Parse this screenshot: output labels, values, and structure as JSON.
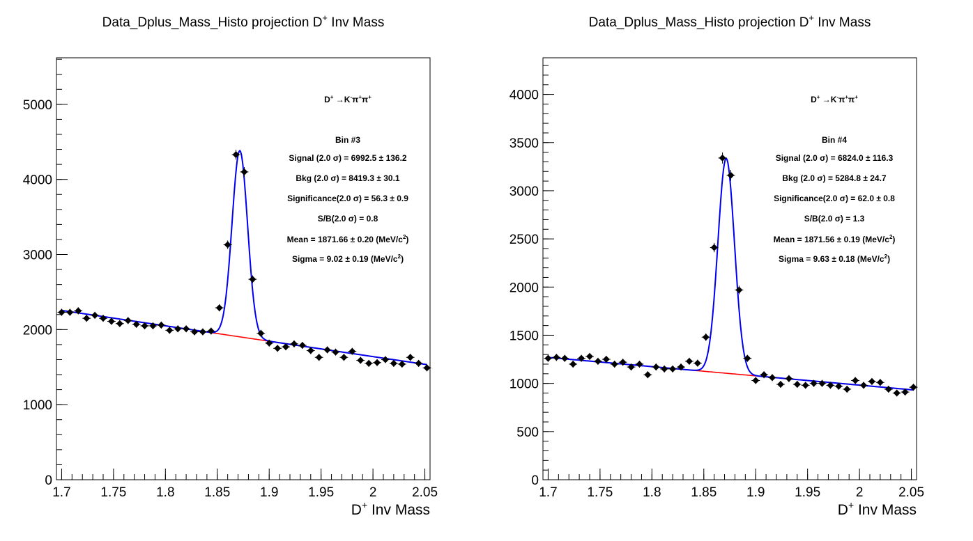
{
  "chart_data": [
    {
      "type": "scatter",
      "title_main": "Data_Dplus_Mass_Histo projection  D",
      "title_sup": "+",
      "title_end": " Inv Mass",
      "xlabel_main": "D",
      "xlabel_sup": "+",
      "xlabel_end": " Inv Mass",
      "xlim": [
        1.695,
        2.055
      ],
      "ylim": [
        0,
        5620
      ],
      "x_ticks": [
        1.7,
        1.75,
        1.8,
        1.85,
        1.9,
        1.95,
        2.0,
        2.05
      ],
      "x_tick_labels": [
        "1.7",
        "1.75",
        "1.8",
        "1.85",
        "1.9",
        "1.95",
        "2",
        "2.05"
      ],
      "y_ticks": [
        0,
        1000,
        2000,
        3000,
        4000,
        5000
      ],
      "y_tick_labels": [
        "0",
        "1000",
        "2000",
        "3000",
        "4000",
        "5000"
      ],
      "y_minor_step": 200,
      "x_minor_step": 0.01,
      "x": [
        1.7,
        1.708,
        1.716,
        1.724,
        1.732,
        1.74,
        1.748,
        1.756,
        1.764,
        1.772,
        1.78,
        1.788,
        1.796,
        1.804,
        1.812,
        1.82,
        1.828,
        1.836,
        1.844,
        1.852,
        1.86,
        1.868,
        1.876,
        1.884,
        1.892,
        1.9,
        1.908,
        1.916,
        1.924,
        1.932,
        1.94,
        1.948,
        1.956,
        1.964,
        1.972,
        1.98,
        1.988,
        1.996,
        2.004,
        2.012,
        2.02,
        2.028,
        2.036,
        2.044,
        2.052
      ],
      "y": [
        2230,
        2230,
        2250,
        2150,
        2190,
        2150,
        2110,
        2080,
        2120,
        2070,
        2050,
        2050,
        2060,
        1990,
        2010,
        2010,
        1970,
        1970,
        1980,
        2290,
        3130,
        4330,
        4100,
        2670,
        1950,
        1820,
        1750,
        1770,
        1810,
        1790,
        1720,
        1630,
        1730,
        1700,
        1630,
        1710,
        1590,
        1550,
        1560,
        1600,
        1550,
        1540,
        1630,
        1550,
        1490
      ],
      "fit": {
        "bkg_a": 2255,
        "bkg_b": -2050,
        "x0": 1.7,
        "amp": 2480,
        "mean": 1.8717,
        "sigma": 0.0075
      },
      "bkg_color": "#ff0000",
      "fit_color": "#0000ee",
      "marker_color": "#000000",
      "annotations": {
        "decay_main": "D",
        "decay_sup1": "+",
        "decay_mid": " →K",
        "decay_sup2": "-",
        "decay_pi1": "π",
        "decay_sup3": "+",
        "decay_pi2": "π",
        "decay_sup4": "+",
        "bin": "Bin #3",
        "signal": "Signal (2.0  σ) =  6992.5  ± 136.2",
        "bkg": "Bkg (2.0  σ) =  8419.3  ± 30.1",
        "significance": "Significance(2.0  σ) =  56.3  ± 0.9",
        "sb": "S/B(2.0  σ) =  0.8",
        "mean": "Mean = 1871.66  ± 0.20 (MeV/c",
        "mean_sup": "2",
        "mean_end": ")",
        "sigma": "Sigma = 9.02  ± 0.19 (MeV/c",
        "sigma_sup": "2",
        "sigma_end": ")"
      }
    },
    {
      "type": "scatter",
      "title_main": "Data_Dplus_Mass_Histo projection  D",
      "title_sup": "+",
      "title_end": " Inv Mass",
      "xlabel_main": "D",
      "xlabel_sup": "+",
      "xlabel_end": " Inv Mass",
      "xlim": [
        1.695,
        2.055
      ],
      "ylim": [
        0,
        4380
      ],
      "x_ticks": [
        1.7,
        1.75,
        1.8,
        1.85,
        1.9,
        1.95,
        2.0,
        2.05
      ],
      "x_tick_labels": [
        "1.7",
        "1.75",
        "1.8",
        "1.85",
        "1.9",
        "1.95",
        "2",
        "2.05"
      ],
      "y_ticks": [
        0,
        500,
        1000,
        1500,
        2000,
        2500,
        3000,
        3500,
        4000
      ],
      "y_tick_labels": [
        "0",
        "500",
        "1000",
        "1500",
        "2000",
        "2500",
        "3000",
        "3500",
        "4000"
      ],
      "y_minor_step": 100,
      "x_minor_step": 0.01,
      "x": [
        1.7,
        1.708,
        1.716,
        1.724,
        1.732,
        1.74,
        1.748,
        1.756,
        1.764,
        1.772,
        1.78,
        1.788,
        1.796,
        1.804,
        1.812,
        1.82,
        1.828,
        1.836,
        1.844,
        1.852,
        1.86,
        1.868,
        1.876,
        1.884,
        1.892,
        1.9,
        1.908,
        1.916,
        1.924,
        1.932,
        1.94,
        1.948,
        1.956,
        1.964,
        1.972,
        1.98,
        1.988,
        1.996,
        2.004,
        2.012,
        2.02,
        2.028,
        2.036,
        2.044,
        2.052
      ],
      "y": [
        1260,
        1270,
        1260,
        1200,
        1260,
        1280,
        1230,
        1250,
        1200,
        1220,
        1170,
        1200,
        1090,
        1170,
        1150,
        1150,
        1170,
        1230,
        1210,
        1480,
        2410,
        3340,
        3160,
        1970,
        1260,
        1030,
        1090,
        1060,
        990,
        1050,
        990,
        980,
        1000,
        1000,
        980,
        970,
        940,
        1030,
        980,
        1020,
        1010,
        940,
        900,
        910,
        960
      ],
      "fit": {
        "bkg_a": 1270,
        "bkg_b": -960,
        "x0": 1.7,
        "amp": 2230,
        "mean": 1.8716,
        "sigma": 0.008
      },
      "bkg_color": "#ff0000",
      "fit_color": "#0000ee",
      "marker_color": "#000000",
      "annotations": {
        "decay_main": "D",
        "decay_sup1": "+",
        "decay_mid": " →K",
        "decay_sup2": "-",
        "decay_pi1": "π",
        "decay_sup3": "+",
        "decay_pi2": "π",
        "decay_sup4": "+",
        "bin": "Bin #4",
        "signal": "Signal (2.0  σ) =  6824.0  ± 116.3",
        "bkg": "Bkg (2.0  σ) =  5284.8  ± 24.7",
        "significance": "Significance(2.0  σ) =  62.0  ± 0.8",
        "sb": "S/B(2.0  σ) =  1.3",
        "mean": "Mean = 1871.56  ± 0.19 (MeV/c",
        "mean_sup": "2",
        "mean_end": ")",
        "sigma": "Sigma = 9.63  ± 0.18 (MeV/c",
        "sigma_sup": "2",
        "sigma_end": ")"
      }
    }
  ]
}
